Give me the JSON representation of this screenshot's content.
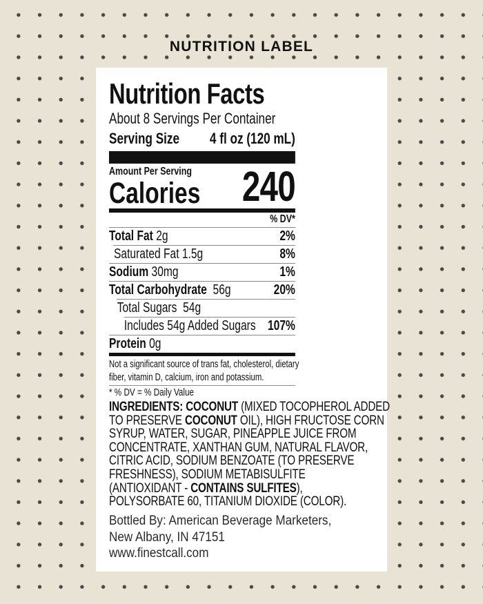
{
  "header": "NUTRITION LABEL",
  "facts": {
    "title": "Nutrition Facts",
    "servings": "About 8 Servings Per Container",
    "serving_size_label": "Serving Size",
    "serving_size_value": "4 fl oz (120 mL)",
    "amount_per_serving": "Amount Per Serving",
    "calories_label": "Calories",
    "calories_value": "240",
    "dv_header": "% DV*",
    "rows": [
      {
        "name": "Total Fat",
        "amount": "2g",
        "dv": "2%"
      },
      {
        "name": "Saturated Fat 1.5g",
        "amount": "",
        "dv": "8%"
      },
      {
        "name": "Sodium",
        "amount": "30mg",
        "dv": "1%"
      },
      {
        "name": "Total Carbohydrate",
        "amount": "56g",
        "dv": "20%"
      },
      {
        "name": "Total Sugars",
        "amount": "54g",
        "dv": ""
      },
      {
        "name": "Includes 54g Added Sugars",
        "amount": "",
        "dv": "107%"
      },
      {
        "name": "Protein",
        "amount": "0g",
        "dv": ""
      }
    ],
    "footnote_1": "Not a significant source of trans fat, cholesterol, dietary",
    "footnote_2": "fiber, vitamin D, calcium, iron and potassium.",
    "footnote_dv": "* % DV = % Daily Value"
  },
  "ingredients": {
    "l0a": "INGREDIENTS: COCONUT",
    "l0b": " (MIXED TOCOPHEROL ADDED",
    "l1a": "TO PRESERVE ",
    "l1b": "COCONUT",
    "l1c": " OIL), HIGH FRUCTOSE CORN",
    "l2": "SYRUP, WATER, SUGAR, PINEAPPLE JUICE FROM",
    "l3": "CONCENTRATE, XANTHAN GUM, NATURAL FLAVOR,",
    "l4": "CITRIC ACID, SODIUM BENZOATE (TO PRESERVE",
    "l5": "FRESHNESS), SODIUM METABISULFITE",
    "l6a": "(ANTIOXIDANT - ",
    "l6b": "CONTAINS SULFITES",
    "l6c": "),",
    "l7": "POLYSORBATE 60, TITANIUM DIOXIDE (COLOR)."
  },
  "bottler": {
    "line1": "Bottled By: American Beverage Marketers,",
    "line2": "New Albany, IN  47151",
    "website": "www.finestcall.com"
  }
}
